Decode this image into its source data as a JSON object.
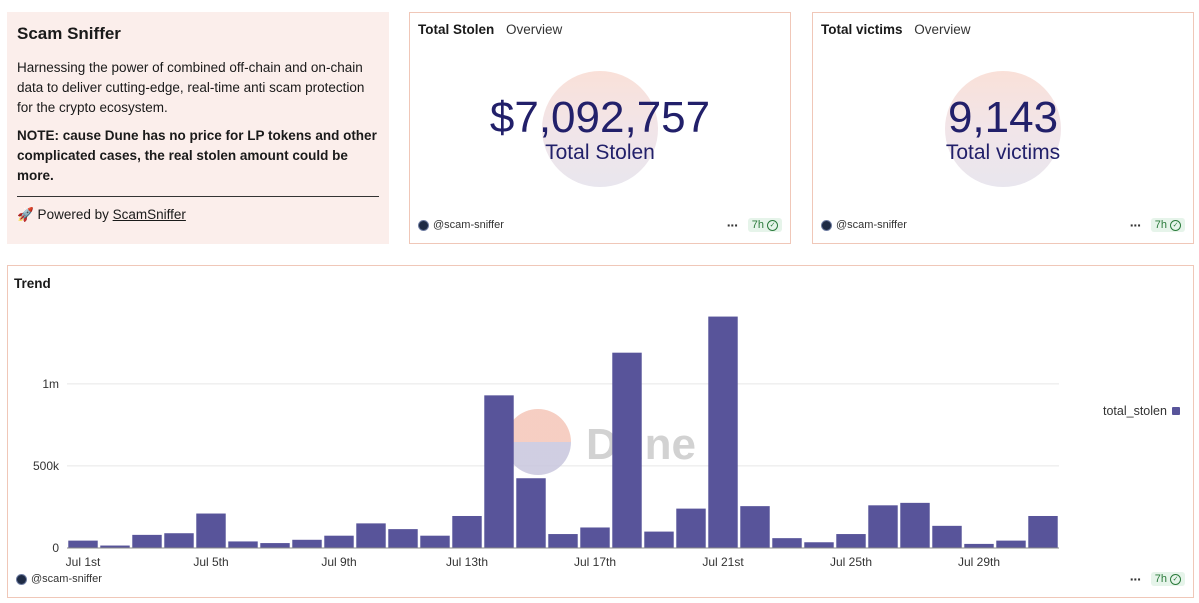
{
  "about": {
    "title": "Scam Sniffer",
    "description": "Harnessing the power of combined off-chain and on-chain data to deliver cutting-edge, real-time anti scam protection for the crypto ecosystem.",
    "note": "NOTE: cause Dune has no price for LP tokens and other complicated cases, the real stolen amount could be more.",
    "powered_prefix": "🚀 Powered by ",
    "powered_link": "ScamSniffer"
  },
  "stolen_widget": {
    "title": "Total Stolen",
    "subtitle": "Overview",
    "value": "$7,092,757",
    "label": "Total Stolen",
    "author": "@scam-sniffer",
    "age": "7h"
  },
  "victims_widget": {
    "title": "Total victims",
    "subtitle": "Overview",
    "value": "9,143",
    "label": "Total victims",
    "author": "@scam-sniffer",
    "age": "7h"
  },
  "trend_widget": {
    "title": "Trend",
    "author": "@scam-sniffer",
    "age": "7h",
    "watermark": "Dune"
  },
  "chart_data": {
    "type": "bar",
    "title": "Trend",
    "categories": [
      "Jul 1st",
      "Jul 2nd",
      "Jul 3rd",
      "Jul 4th",
      "Jul 5th",
      "Jul 6th",
      "Jul 7th",
      "Jul 8th",
      "Jul 9th",
      "Jul 10th",
      "Jul 11th",
      "Jul 12th",
      "Jul 13th",
      "Jul 14th",
      "Jul 15th",
      "Jul 16th",
      "Jul 17th",
      "Jul 18th",
      "Jul 19th",
      "Jul 20th",
      "Jul 21st",
      "Jul 22nd",
      "Jul 23rd",
      "Jul 24th",
      "Jul 25th",
      "Jul 26th",
      "Jul 27th",
      "Jul 28th",
      "Jul 29th",
      "Jul 30th",
      "Jul 31st"
    ],
    "tick_labels": [
      "Jul 1st",
      "Jul 5th",
      "Jul 9th",
      "Jul 13th",
      "Jul 17th",
      "Jul 21st",
      "Jul 25th",
      "Jul 29th"
    ],
    "series": [
      {
        "name": "total_stolen",
        "values": [
          45000,
          15000,
          80000,
          90000,
          210000,
          40000,
          30000,
          50000,
          75000,
          150000,
          115000,
          75000,
          195000,
          930000,
          425000,
          85000,
          125000,
          1190000,
          100000,
          240000,
          1410000,
          255000,
          60000,
          35000,
          85000,
          260000,
          275000,
          135000,
          25000,
          45000,
          195000
        ]
      }
    ],
    "yticks": [
      0,
      500000,
      1000000
    ],
    "ytick_labels": [
      "0",
      "500k",
      "1m"
    ],
    "ylim": [
      0,
      1450000
    ],
    "grid": true,
    "legend_position": "right",
    "color": "#58549a"
  }
}
